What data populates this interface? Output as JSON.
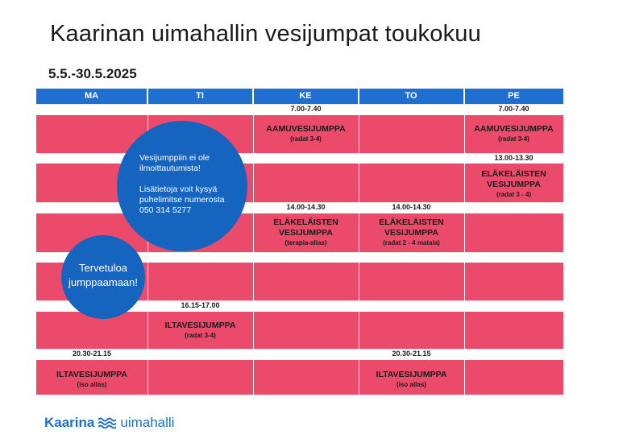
{
  "title": "Kaarinan uimahallin vesijumpat toukokuu",
  "subtitle": "5.5.-30.5.2025",
  "days": [
    "MA",
    "TI",
    "KE",
    "TO",
    "PE"
  ],
  "times": {
    "ke_morning": "7.00-7.40",
    "pe_morning": "7.00-7.40",
    "pe_midday": "13.00-13.30",
    "ke_afternoon": "14.00-14.30",
    "to_afternoon": "14.00-14.30",
    "ti_evening": "16.15-17.00",
    "ma_evening": "20.30-21.15",
    "to_evening": "20.30-21.15"
  },
  "activities": {
    "ke_morning": {
      "name": "AAMUVESIJUMPPA",
      "sub": "(radat 3-4)"
    },
    "pe_morning": {
      "name": "AAMUVESIJUMPPA",
      "sub": "(radat 3-4)"
    },
    "pe_midday": {
      "name": "ELÄKELÄISTEN VESIJUMPPA",
      "sub": "(radat 3 - 4)"
    },
    "ke_afternoon": {
      "name": "ELÄKELÄISTEN VESIJUMPPA",
      "sub": "(terapia-allas)"
    },
    "to_afternoon": {
      "name": "ELÄKELÄISTEN VESIJUMPPA",
      "sub": "(radat 2 - 4 matala)"
    },
    "ti_evening": {
      "name": "ILTAVESIJUMPPA",
      "sub": "(radat 3-4)"
    },
    "ma_evening": {
      "name": "ILTAVESIJUMPPA",
      "sub": "(iso allas)"
    },
    "to_evening": {
      "name": "ILTAVESIJUMPPA",
      "sub": "(iso allas)"
    }
  },
  "notice": {
    "line1": "Vesijumppiin ei ole ilmoittautumista!",
    "line2": "Lisätietoja voit kysyä puhelimitse numerosta 050 314 5277"
  },
  "welcome": "Tervetuloa jumppaamaan!",
  "logo": {
    "brand": "Kaarina",
    "place": "uimahalli"
  },
  "colors": {
    "header_blue": "#1f6fd1",
    "row_pink": "#ec4a6b",
    "bubble_blue": "#1565c0",
    "logo_blue": "#1e6fc8"
  }
}
